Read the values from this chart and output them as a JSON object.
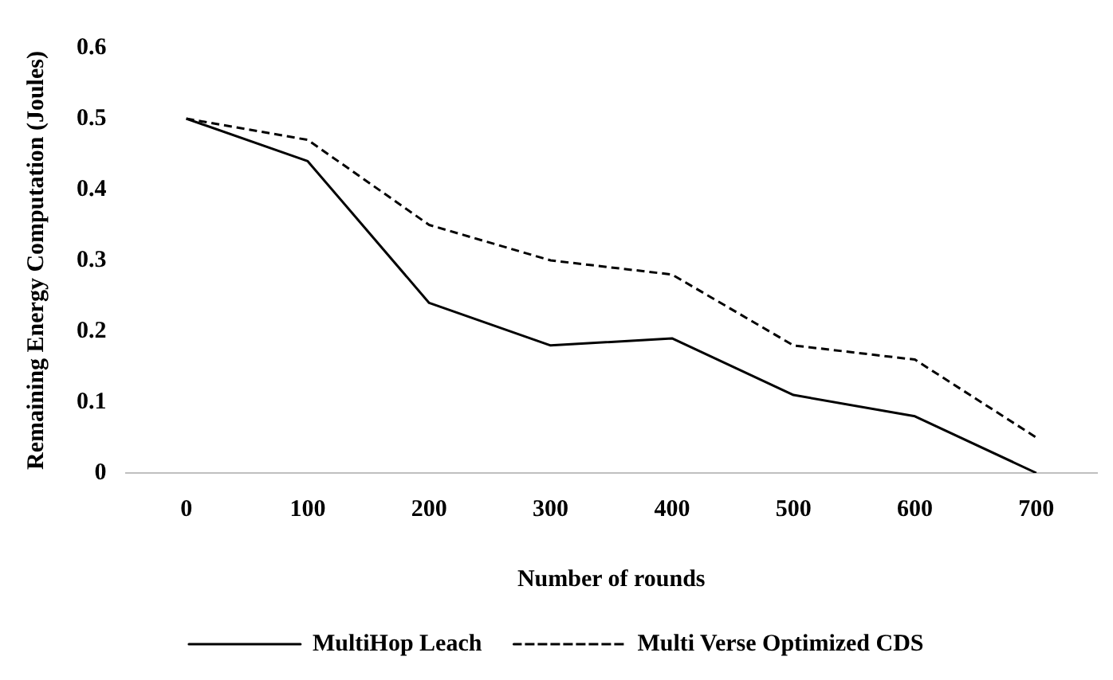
{
  "chart_data": {
    "type": "line",
    "xlabel": "Number of rounds",
    "ylabel": "Remaining Energy Computation (Joules)",
    "categories": [
      "0",
      "100",
      "200",
      "300",
      "400",
      "500",
      "600",
      "700"
    ],
    "ylim": [
      0,
      0.6
    ],
    "yticks": [
      {
        "value": 0,
        "label": "0"
      },
      0.1,
      0.2,
      0.3,
      0.4,
      0.5,
      0.6
    ],
    "grid": false,
    "legend": "bottom",
    "marker": "none",
    "series": [
      {
        "name": "MultiHop Leach",
        "color": "#000000",
        "line_style": "solid",
        "values": [
          0.5,
          0.44,
          0.24,
          0.18,
          0.19,
          0.11,
          0.08,
          0
        ]
      },
      {
        "name": "Multi Verse Optimized CDS",
        "color": "#000000",
        "line_style": "dashed",
        "values": [
          0.5,
          0.47,
          0.35,
          0.3,
          0.28,
          0.18,
          0.16,
          0.05
        ]
      }
    ]
  }
}
